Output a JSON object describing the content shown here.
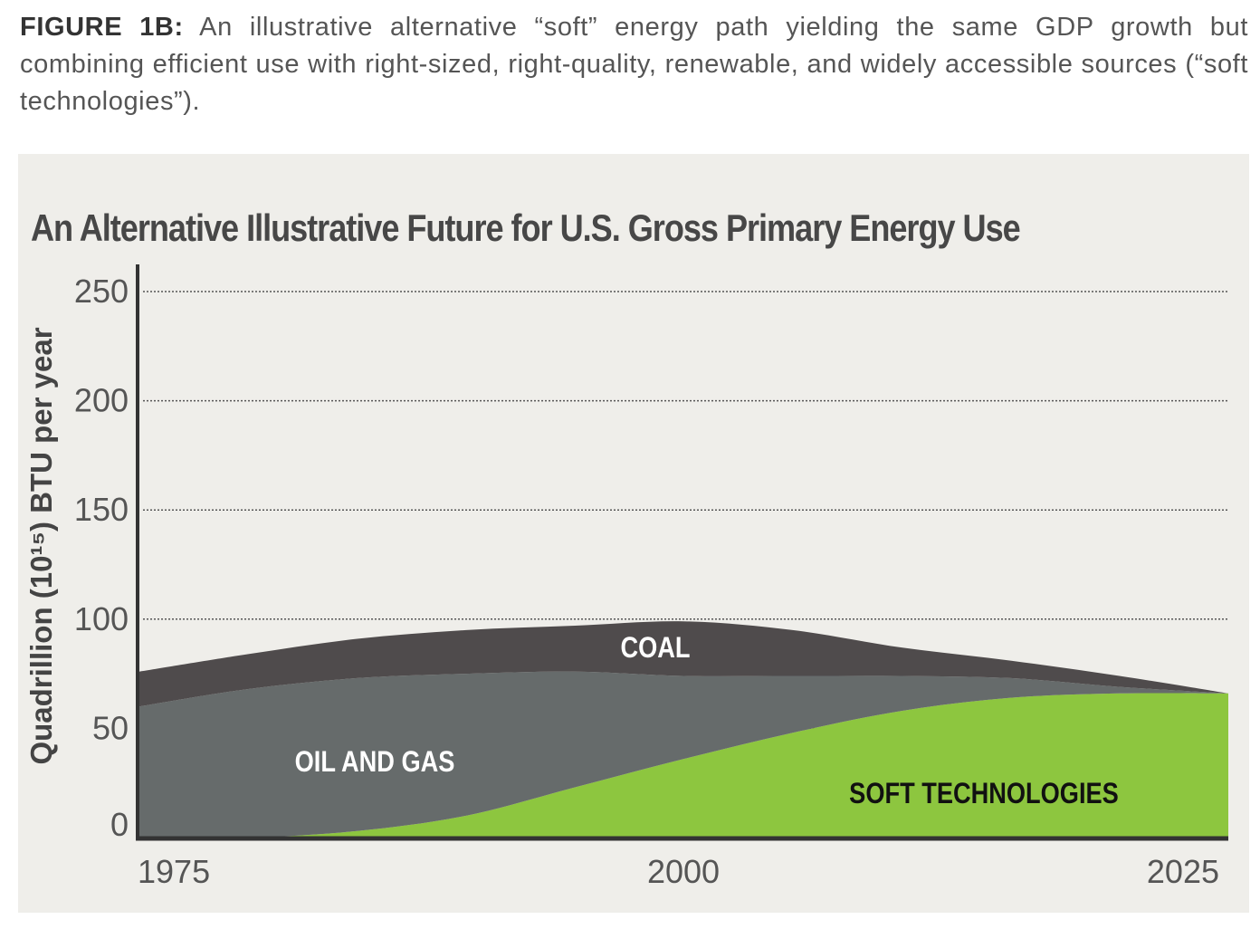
{
  "caption": {
    "label": "FIGURE 1B:",
    "text": "An illustrative alternative “soft” energy path yielding the same GDP growth but combining efficient use with right-sized, right-quality, renewable, and widely accessible sources (“soft technologies”)."
  },
  "chart_data": {
    "type": "area",
    "stacked": true,
    "title": "An Alternative Illustrative Future for U.S. Gross Primary Energy Use",
    "xlabel": "",
    "ylabel": "Quadrillion (10¹⁵) BTU per year",
    "xlim": [
      1975,
      2025
    ],
    "ylim": [
      0,
      250
    ],
    "x_ticks": [
      "1975",
      "2000",
      "2025"
    ],
    "y_ticks": [
      "0",
      "50",
      "100",
      "150",
      "200",
      "250"
    ],
    "grid": "horizontal-dotted",
    "x": [
      1975,
      1980,
      1985,
      1990,
      1995,
      2000,
      2005,
      2010,
      2015,
      2020,
      2025
    ],
    "series": [
      {
        "name": "SOFT TECHNOLOGIES",
        "color": "#8dc63f",
        "label_color": "#111111",
        "values": [
          0,
          0,
          3,
          10,
          23,
          36,
          48,
          58,
          64,
          66,
          66
        ]
      },
      {
        "name": "OIL AND GAS",
        "color": "#666b6b",
        "label_color": "#ffffff",
        "values": [
          60,
          68,
          70,
          65,
          53,
          38,
          26,
          16,
          9,
          3,
          0
        ]
      },
      {
        "name": "COAL",
        "color": "#4f4b4c",
        "label_color": "#ffffff",
        "values": [
          16,
          16,
          18,
          20,
          21,
          25,
          21,
          13,
          8,
          5,
          0
        ]
      }
    ]
  }
}
